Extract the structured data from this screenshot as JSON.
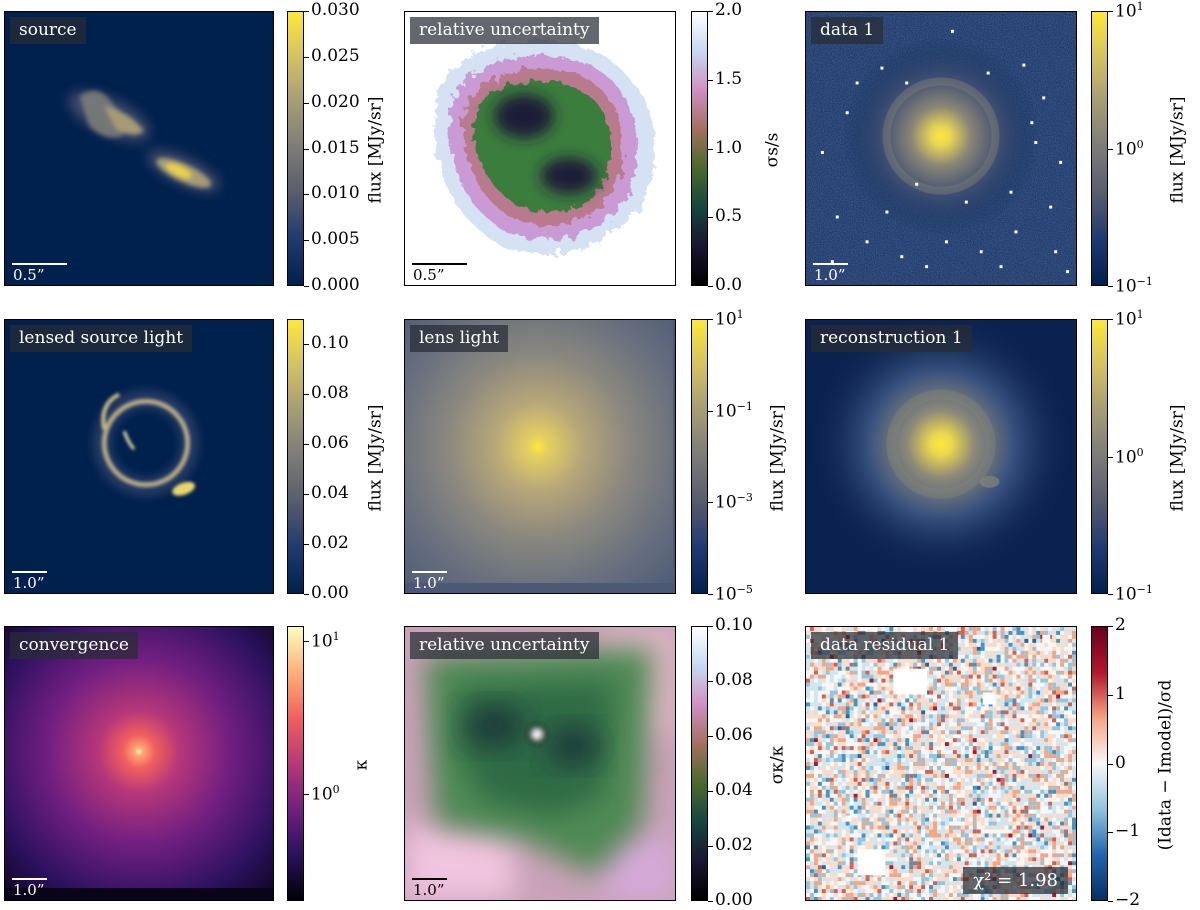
{
  "figure": {
    "colors": {
      "cividis": [
        "#00204d",
        "#1f3a6f",
        "#575c6e",
        "#7c7b78",
        "#a59c74",
        "#d3c164",
        "#fee838"
      ],
      "cubehelix": [
        "#000000",
        "#1a1532",
        "#15463e",
        "#4a6a2c",
        "#a3705e",
        "#d08fc3",
        "#c6d9f2",
        "#ffffff"
      ],
      "magma": [
        "#000004",
        "#2c115f",
        "#721f81",
        "#b73779",
        "#f1605d",
        "#feb078",
        "#fcfdbf"
      ],
      "rdbu": [
        "#053061",
        "#2166ac",
        "#92c5de",
        "#f7f7f7",
        "#f4a582",
        "#b2182b",
        "#67001f"
      ]
    },
    "panels": [
      {
        "id": "source",
        "title": "source",
        "scalebar": "0.5”",
        "colorbar": {
          "scale": "linear",
          "min": 0.0,
          "max": 0.03,
          "ticks": [
            {
              "v": 0.0,
              "t": "0.000"
            },
            {
              "v": 0.005,
              "t": "0.005"
            },
            {
              "v": 0.01,
              "t": "0.010"
            },
            {
              "v": 0.015,
              "t": "0.015"
            },
            {
              "v": 0.02,
              "t": "0.020"
            },
            {
              "v": 0.025,
              "t": "0.025"
            },
            {
              "v": 0.03,
              "t": "0.030"
            }
          ],
          "label": "flux [MJy/sr]",
          "cmap": "cividis"
        }
      },
      {
        "id": "source-uncertainty",
        "title": "relative uncertainty",
        "scalebar": "0.5”",
        "colorbar": {
          "scale": "linear",
          "min": 0.0,
          "max": 2.0,
          "ticks": [
            {
              "v": 0.0,
              "t": "0.0"
            },
            {
              "v": 0.5,
              "t": "0.5"
            },
            {
              "v": 1.0,
              "t": "1.0"
            },
            {
              "v": 1.5,
              "t": "1.5"
            },
            {
              "v": 2.0,
              "t": "2.0"
            }
          ],
          "label": "σs/s",
          "cmap": "cubehelix"
        }
      },
      {
        "id": "data-1",
        "title": "data 1",
        "scalebar": "1.0”",
        "colorbar": {
          "scale": "log",
          "min": -1,
          "max": 1,
          "ticks": [
            {
              "v": -1,
              "base": "10",
              "exp": "−1"
            },
            {
              "v": 0,
              "base": "10",
              "exp": "0"
            },
            {
              "v": 1,
              "base": "10",
              "exp": "1"
            }
          ],
          "label": "flux [MJy/sr]",
          "cmap": "cividis"
        }
      },
      {
        "id": "lensed-source",
        "title": "lensed source light",
        "scalebar": "1.0”",
        "colorbar": {
          "scale": "linear",
          "min": 0.0,
          "max": 0.11,
          "ticks": [
            {
              "v": 0.0,
              "t": "0.00"
            },
            {
              "v": 0.02,
              "t": "0.02"
            },
            {
              "v": 0.04,
              "t": "0.04"
            },
            {
              "v": 0.06,
              "t": "0.06"
            },
            {
              "v": 0.08,
              "t": "0.08"
            },
            {
              "v": 0.1,
              "t": "0.10"
            }
          ],
          "label": "flux [MJy/sr]",
          "cmap": "cividis"
        }
      },
      {
        "id": "lens-light",
        "title": "lens light",
        "scalebar": "1.0”",
        "colorbar": {
          "scale": "log",
          "min": -5,
          "max": 1,
          "ticks": [
            {
              "v": -5,
              "base": "10",
              "exp": "−5"
            },
            {
              "v": -3,
              "base": "10",
              "exp": "−3"
            },
            {
              "v": -1,
              "base": "10",
              "exp": "−1"
            },
            {
              "v": 1,
              "base": "10",
              "exp": "1"
            }
          ],
          "label": "flux [MJy/sr]",
          "cmap": "cividis"
        }
      },
      {
        "id": "reconstruction-1",
        "title": "reconstruction 1",
        "scalebar": "",
        "colorbar": {
          "scale": "log",
          "min": -1,
          "max": 1,
          "ticks": [
            {
              "v": -1,
              "base": "10",
              "exp": "−1"
            },
            {
              "v": 0,
              "base": "10",
              "exp": "0"
            },
            {
              "v": 1,
              "base": "10",
              "exp": "1"
            }
          ],
          "label": "flux [MJy/sr]",
          "cmap": "cividis"
        }
      },
      {
        "id": "convergence",
        "title": "convergence",
        "scalebar": "1.0”",
        "colorbar": {
          "scale": "log",
          "min": -0.7,
          "max": 1.1,
          "ticks": [
            {
              "v": 0,
              "base": "10",
              "exp": "0"
            },
            {
              "v": 1,
              "base": "10",
              "exp": "1"
            }
          ],
          "label": "κ",
          "cmap": "magma"
        }
      },
      {
        "id": "convergence-uncertainty",
        "title": "relative uncertainty",
        "scalebar": "1.0”",
        "colorbar": {
          "scale": "linear",
          "min": 0.0,
          "max": 0.1,
          "ticks": [
            {
              "v": 0.0,
              "t": "0.00"
            },
            {
              "v": 0.02,
              "t": "0.02"
            },
            {
              "v": 0.04,
              "t": "0.04"
            },
            {
              "v": 0.06,
              "t": "0.06"
            },
            {
              "v": 0.08,
              "t": "0.08"
            },
            {
              "v": 0.1,
              "t": "0.10"
            }
          ],
          "label": "σκ/κ",
          "cmap": "cubehelix"
        }
      },
      {
        "id": "data-residual-1",
        "title": "data residual 1",
        "scalebar": "",
        "annotation": "χ² = 1.98",
        "colorbar": {
          "scale": "linear",
          "min": -2,
          "max": 2,
          "ticks": [
            {
              "v": -2,
              "t": "−2"
            },
            {
              "v": -1,
              "t": "−1"
            },
            {
              "v": 0,
              "t": "0"
            },
            {
              "v": 1,
              "t": "1"
            },
            {
              "v": 2,
              "t": "2"
            }
          ],
          "label": "(Idata − Imodel)/σd",
          "cmap": "rdbu"
        }
      }
    ]
  }
}
